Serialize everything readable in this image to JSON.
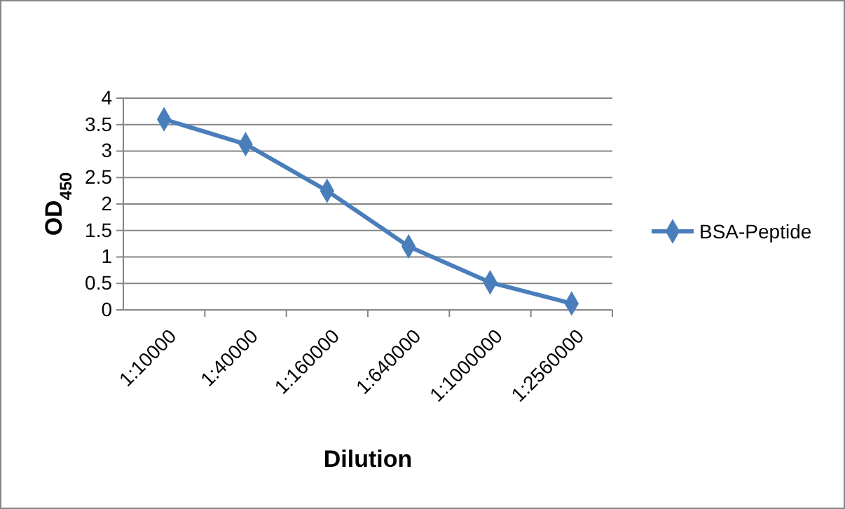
{
  "chart_data": {
    "type": "line",
    "xlabel": "Dilution",
    "ylabel": "OD$_{450}$",
    "categories": [
      "1:10000",
      "1:40000",
      "1:160000",
      "1:640000",
      "1:1000000",
      "1:2560000"
    ],
    "series": [
      {
        "name": "BSA-Peptide",
        "color": "#4a7ebb",
        "values": [
          3.6,
          3.13,
          2.25,
          1.2,
          0.52,
          0.12
        ]
      }
    ],
    "ylim": [
      0,
      4
    ],
    "yticks": [
      0,
      0.5,
      1,
      1.5,
      2,
      2.5,
      3,
      3.5,
      4
    ],
    "grid": "y",
    "legend": "right",
    "marker": "diamond",
    "line_style": "solid"
  }
}
